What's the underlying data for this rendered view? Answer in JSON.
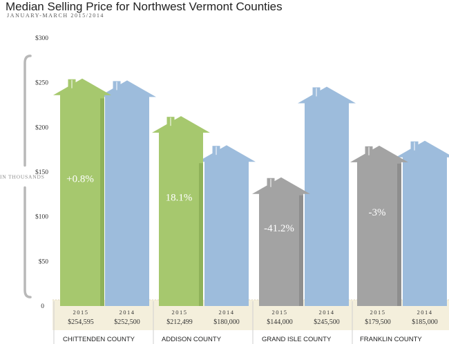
{
  "chart_data": {
    "type": "bar",
    "title": "Median Selling Price for Northwest Vermont Counties",
    "subtitle": "JANUARY-MARCH 2015/2014",
    "ylabel": "IN THOUSANDS",
    "ylim": [
      0,
      300
    ],
    "yticks": [
      "$300",
      "$250",
      "$200",
      "$150",
      "$100",
      "$50",
      "0"
    ],
    "categories": [
      "CHITTENDEN COUNTY",
      "ADDISON COUNTY",
      "GRAND ISLE COUNTY",
      "FRANKLIN COUNTY"
    ],
    "series": [
      {
        "name": "2015",
        "values": [
          254.595,
          212.499,
          144.0,
          179.5
        ],
        "labels": [
          "$254,595",
          "$212,499",
          "$144,000",
          "$179,500"
        ]
      },
      {
        "name": "2014",
        "values": [
          252.5,
          180.0,
          245.5,
          185.0
        ],
        "labels": [
          "$252,500",
          "$180,000",
          "$245,500",
          "$185,000"
        ]
      }
    ],
    "changes": [
      "+0.8%",
      "18.1%",
      "-41.2%",
      "-3%"
    ],
    "colors": {
      "up_2015": "#a6c86e",
      "down_2015": "#a3a3a3",
      "year_2014": "#9dbcdc",
      "axis_band": "#f4efdc",
      "brace": "#b8b8b8"
    }
  }
}
